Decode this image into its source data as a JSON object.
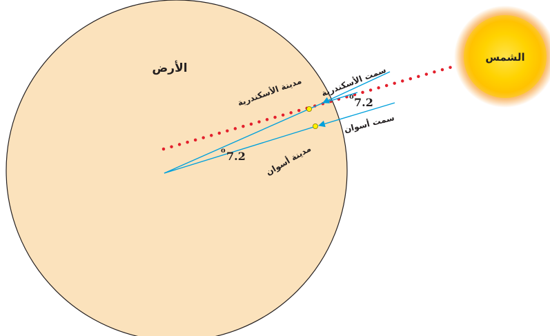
{
  "labels": {
    "earth": "الأرض",
    "sun": "الشمس",
    "alexandria_zenith": "سمت الأسكندرية",
    "aswan_zenith": "سمت أسوان",
    "alexandria_city": "مدينة الأسكندرية",
    "aswan_city": "مدينة أسوان",
    "angle_at_center": "7.2",
    "angle_at_surface": "7.2",
    "degree_mark": "o"
  },
  "colors": {
    "earth_fill": "#fbe2bc",
    "earth_stroke": "#231f20",
    "ray_line": "#00a0dc",
    "dotted_line": "#e3202c",
    "city_marker": "#fff200",
    "sun_core": "#ffd200",
    "sun_glow": "#f7941d"
  }
}
